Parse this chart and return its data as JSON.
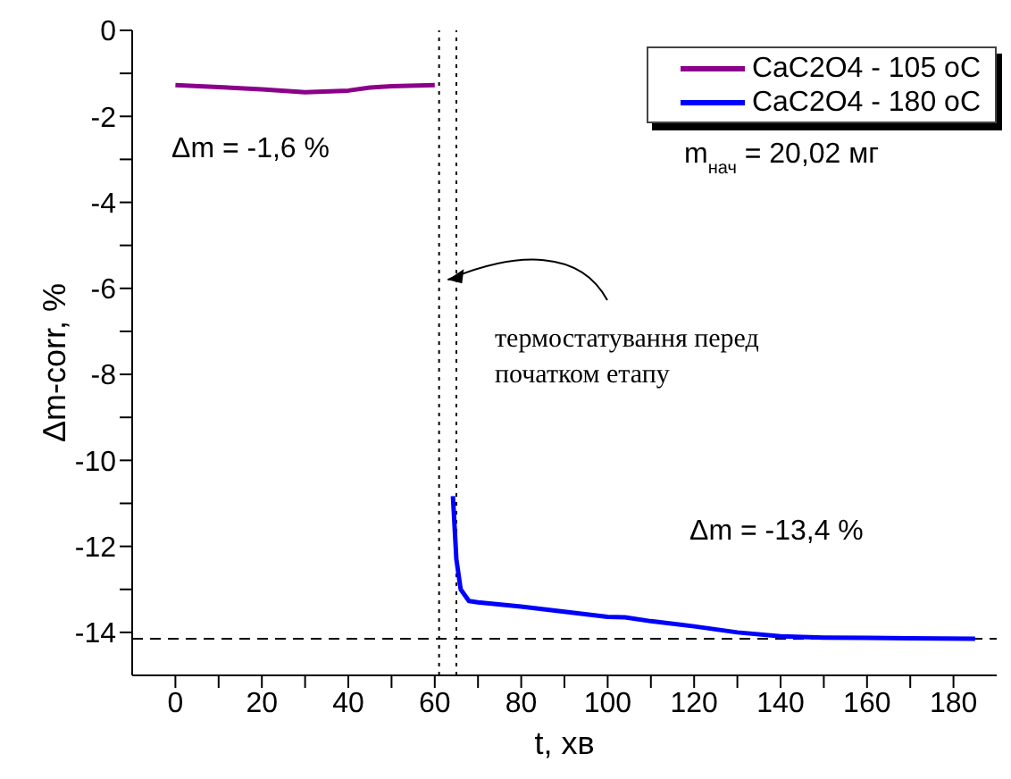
{
  "chart_data": {
    "type": "line",
    "xlabel": "t, хв",
    "ylabel": "Δm-corr, %",
    "xlim": [
      -10,
      190
    ],
    "ylim": [
      -15,
      0
    ],
    "xticks": [
      0,
      {
        "value": 10,
        "label": null
      },
      20,
      {
        "value": 30,
        "label": null
      },
      40,
      {
        "value": 50,
        "label": null
      },
      60,
      {
        "value": 70,
        "label": null
      },
      80,
      {
        "value": 90,
        "label": null
      },
      100,
      {
        "value": 110,
        "label": null
      },
      120,
      {
        "value": 130,
        "label": null
      },
      140,
      {
        "value": 150,
        "label": null
      },
      160,
      {
        "value": 170,
        "label": null
      },
      180
    ],
    "yticks": [
      -14,
      {
        "value": -13,
        "label": null
      },
      -12,
      {
        "value": -11,
        "label": null
      },
      -10,
      {
        "value": -9,
        "label": null
      },
      -8,
      {
        "value": -7,
        "label": null
      },
      -6,
      {
        "value": -5,
        "label": null
      },
      -4,
      {
        "value": -3,
        "label": null
      },
      -2,
      {
        "value": -1,
        "label": null
      },
      0
    ],
    "series": [
      {
        "name": "CaC2O4 - 105 oC",
        "color": "#8b008b",
        "x": [
          0,
          10,
          20,
          30,
          40,
          45,
          50,
          60
        ],
        "values": [
          -1.27,
          -1.32,
          -1.37,
          -1.44,
          -1.4,
          -1.33,
          -1.3,
          -1.27
        ]
      },
      {
        "name": "CaC2O4 - 180 oC",
        "color": "#0000ff",
        "x": [
          64.2,
          65,
          66,
          67.9,
          70,
          80,
          90,
          100,
          104,
          110,
          120,
          130,
          140,
          150,
          160,
          170,
          185
        ],
        "values": [
          -10.83,
          -12.3,
          -13.0,
          -13.27,
          -13.3,
          -13.4,
          -13.52,
          -13.64,
          -13.65,
          -13.74,
          -13.86,
          -14.0,
          -14.09,
          -14.12,
          -14.13,
          -14.14,
          -14.15
        ]
      }
    ],
    "ref_lines": [
      {
        "axis": "x",
        "value": 61,
        "line_style": "dotted",
        "color": "#000000"
      },
      {
        "axis": "x",
        "value": 65,
        "line_style": "dotted",
        "color": "#000000"
      },
      {
        "axis": "y",
        "value": -14.15,
        "line_style": "dashed",
        "color": "#000000"
      }
    ],
    "annotations": [
      "Δm = -1,6 %",
      "m$_{нач}$ = 20,02 мг",
      {
        "text": "термостатування перед початком етапу",
        "x": 63,
        "y": -5.8
      },
      "Δm = -13,4 %"
    ],
    "legend": "top right",
    "grid": false,
    "marker": "none",
    "line_style": "solid"
  }
}
